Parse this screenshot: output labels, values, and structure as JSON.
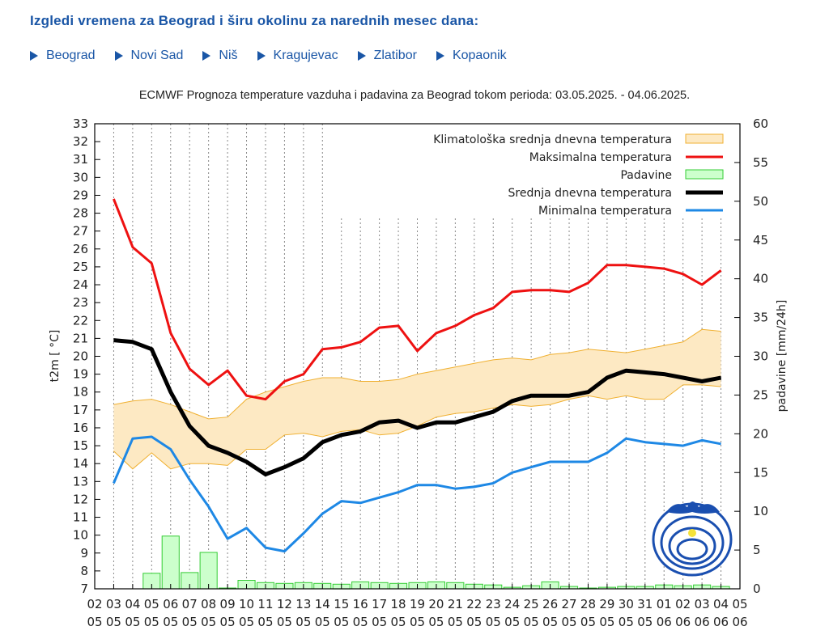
{
  "page": {
    "heading": "Izgledi vremena za Beograd i širu okolinu za narednih mesec dana:",
    "cities": [
      {
        "label": "Beograd"
      },
      {
        "label": "Novi Sad"
      },
      {
        "label": "Niš"
      },
      {
        "label": "Kragujevac"
      },
      {
        "label": "Zlatibor"
      },
      {
        "label": "Kopaonik"
      }
    ]
  },
  "colors": {
    "link": "#1a56a6",
    "max": "#ee1111",
    "mean": "#000000",
    "min": "#1e88e5",
    "climate_fill": "#fde9c3",
    "climate_line": "#f0b030",
    "precip_fill": "#ccffcc",
    "precip_line": "#33cc33"
  },
  "chart_data": {
    "type": "line",
    "title": "ECMWF Prognoza temperature vazduha i padavina za Beograd tokom perioda: 03.05.2025. - 04.06.2025.",
    "ylabel": "t2m [ °C]",
    "y2label": "padavine [mm/24h]",
    "ylim": [
      7,
      33
    ],
    "y2lim": [
      0,
      60
    ],
    "x_day": [
      "02",
      "03",
      "04",
      "05",
      "06",
      "07",
      "08",
      "09",
      "10",
      "11",
      "12",
      "13",
      "14",
      "15",
      "16",
      "17",
      "18",
      "19",
      "20",
      "21",
      "22",
      "23",
      "24",
      "25",
      "26",
      "27",
      "28",
      "29",
      "30",
      "31",
      "01",
      "02",
      "03",
      "04",
      "05"
    ],
    "x_month": [
      "05",
      "05",
      "05",
      "05",
      "05",
      "05",
      "05",
      "05",
      "05",
      "05",
      "05",
      "05",
      "05",
      "05",
      "05",
      "05",
      "05",
      "05",
      "05",
      "05",
      "05",
      "05",
      "05",
      "05",
      "05",
      "05",
      "05",
      "05",
      "05",
      "05",
      "06",
      "06",
      "06",
      "06",
      "06"
    ],
    "legend": [
      {
        "key": "climate",
        "label": "Klimatološka srednja dnevna temperatura"
      },
      {
        "key": "max",
        "label": "Maksimalna temperatura"
      },
      {
        "key": "precip",
        "label": "Padavine"
      },
      {
        "key": "mean",
        "label": "Srednja dnevna temperatura"
      },
      {
        "key": "min",
        "label": "Minimalna temperatura"
      }
    ],
    "series": {
      "max": [
        28.8,
        26.1,
        25.2,
        21.3,
        19.3,
        18.4,
        19.2,
        17.8,
        17.6,
        18.6,
        19.0,
        20.4,
        20.5,
        20.8,
        21.6,
        21.7,
        20.3,
        21.3,
        21.7,
        22.3,
        22.7,
        23.6,
        23.7,
        23.7,
        23.6,
        24.1,
        25.1,
        25.1,
        25.0,
        24.9,
        24.6,
        24.0,
        24.8
      ],
      "mean": [
        20.9,
        20.8,
        20.4,
        18.0,
        16.1,
        15.0,
        14.6,
        14.1,
        13.4,
        13.8,
        14.3,
        15.2,
        15.6,
        15.8,
        16.3,
        16.4,
        16.0,
        16.3,
        16.3,
        16.6,
        16.9,
        17.5,
        17.8,
        17.8,
        17.8,
        18.0,
        18.8,
        19.2,
        19.1,
        19.0,
        18.8,
        18.6,
        18.8
      ],
      "min": [
        12.9,
        15.4,
        15.5,
        14.8,
        13.1,
        11.6,
        9.8,
        10.4,
        9.3,
        9.1,
        10.1,
        11.2,
        11.9,
        11.8,
        12.1,
        12.4,
        12.8,
        12.8,
        12.6,
        12.7,
        12.9,
        13.5,
        13.8,
        14.1,
        14.1,
        14.1,
        14.6,
        15.4,
        15.2,
        15.1,
        15.0,
        15.3,
        15.1
      ],
      "climate_upper": [
        17.3,
        17.5,
        17.6,
        17.3,
        16.9,
        16.5,
        16.6,
        17.6,
        18.0,
        18.3,
        18.6,
        18.8,
        18.8,
        18.6,
        18.6,
        18.7,
        19.0,
        19.2,
        19.4,
        19.6,
        19.8,
        19.9,
        19.8,
        20.1,
        20.2,
        20.4,
        20.3,
        20.2,
        20.4,
        20.6,
        20.8,
        21.5,
        21.4
      ],
      "climate_lower": [
        14.7,
        13.7,
        14.6,
        13.7,
        14.0,
        14.0,
        13.9,
        14.8,
        14.8,
        15.6,
        15.7,
        15.5,
        15.8,
        15.9,
        15.6,
        15.7,
        16.1,
        16.6,
        16.8,
        16.9,
        17.1,
        17.3,
        17.2,
        17.3,
        17.6,
        17.8,
        17.6,
        17.8,
        17.6,
        17.6,
        18.4,
        18.4,
        18.3
      ],
      "precip": [
        0.0,
        0.0,
        2.0,
        6.8,
        2.1,
        4.7,
        0.1,
        1.1,
        0.8,
        0.7,
        0.8,
        0.7,
        0.6,
        0.9,
        0.8,
        0.7,
        0.8,
        0.9,
        0.8,
        0.6,
        0.5,
        0.2,
        0.4,
        0.9,
        0.3,
        0.1,
        0.2,
        0.3,
        0.3,
        0.5,
        0.4,
        0.5,
        0.3
      ]
    }
  }
}
